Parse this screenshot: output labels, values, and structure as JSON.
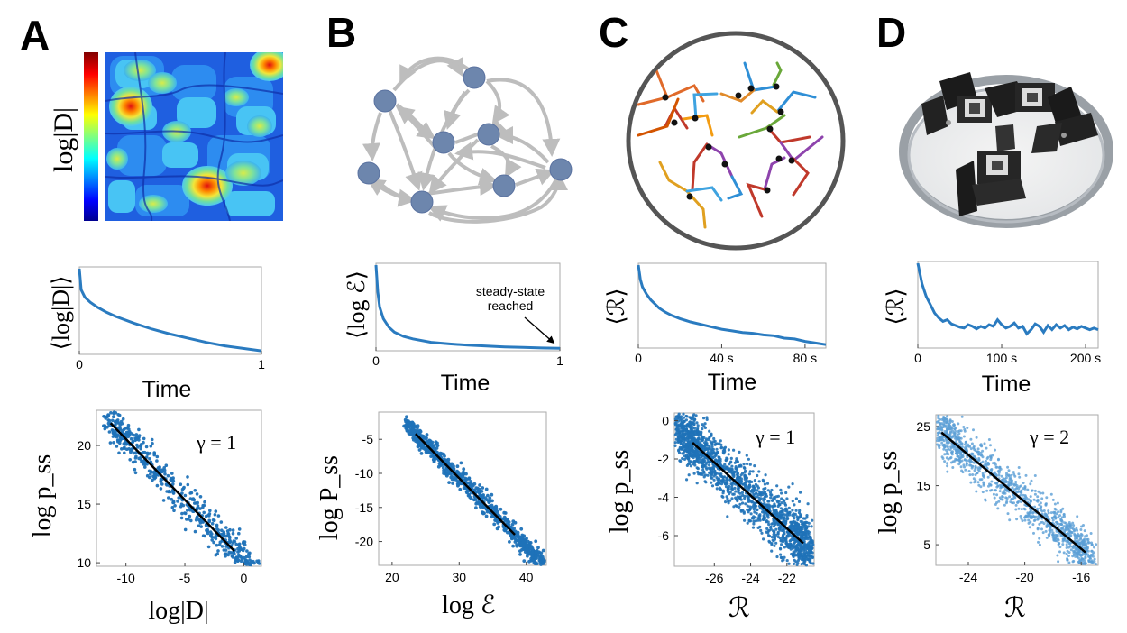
{
  "panels": [
    {
      "letter": "A"
    },
    {
      "letter": "B"
    },
    {
      "letter": "C"
    },
    {
      "letter": "D"
    }
  ],
  "colors": {
    "curve": "#2a7bc0",
    "scatter": "#1f72b8",
    "scatter_light": "#5b9fd6",
    "fit": "#000000",
    "node": "#6d86ad",
    "edge": "#bdbdbd",
    "arena": "#555555",
    "ring": "#9aa0a6"
  },
  "row1": {
    "heatmap_label": "log|D|",
    "annotation": "steady-state reached"
  },
  "chart_data": [
    {
      "id": "A-decay",
      "type": "line",
      "ylabel": "⟨log|D|⟩",
      "xlabel": "Time",
      "xticks": [
        "0",
        "1"
      ],
      "xlim": [
        0,
        1
      ],
      "x": [
        0,
        0.01,
        0.03,
        0.06,
        0.1,
        0.15,
        0.2,
        0.3,
        0.4,
        0.5,
        0.6,
        0.7,
        0.8,
        0.9,
        1.0
      ],
      "y": [
        1.0,
        0.75,
        0.66,
        0.6,
        0.54,
        0.48,
        0.43,
        0.35,
        0.28,
        0.22,
        0.17,
        0.12,
        0.08,
        0.05,
        0.02
      ]
    },
    {
      "id": "B-decay",
      "type": "line",
      "ylabel": "⟨log ℰ⟩",
      "xlabel": "Time",
      "xticks": [
        "0",
        "1"
      ],
      "xlim": [
        0,
        1
      ],
      "annotation": "steady-state reached",
      "x": [
        0,
        0.01,
        0.02,
        0.04,
        0.07,
        0.1,
        0.15,
        0.2,
        0.3,
        0.4,
        0.5,
        0.6,
        0.7,
        0.8,
        0.9,
        1.0
      ],
      "y": [
        1.0,
        0.68,
        0.5,
        0.36,
        0.26,
        0.2,
        0.15,
        0.12,
        0.08,
        0.06,
        0.045,
        0.035,
        0.025,
        0.018,
        0.012,
        0.008
      ]
    },
    {
      "id": "C-decay",
      "type": "line",
      "ylabel": "⟨ℛ⟩",
      "xlabel": "Time",
      "xticks": [
        "0",
        "40 s",
        "80 s"
      ],
      "xtick_values": [
        0,
        40,
        80
      ],
      "xlim": [
        0,
        90
      ],
      "x": [
        0,
        1,
        2,
        4,
        6,
        8,
        10,
        13,
        16,
        20,
        25,
        30,
        35,
        40,
        45,
        50,
        55,
        60,
        65,
        70,
        75,
        80,
        85,
        90
      ],
      "y": [
        1.0,
        0.82,
        0.73,
        0.64,
        0.57,
        0.52,
        0.47,
        0.42,
        0.38,
        0.34,
        0.3,
        0.27,
        0.24,
        0.21,
        0.19,
        0.17,
        0.16,
        0.14,
        0.13,
        0.1,
        0.09,
        0.06,
        0.04,
        0.02
      ]
    },
    {
      "id": "D-decay",
      "type": "line",
      "ylabel": "⟨ℛ⟩",
      "xlabel": "Time",
      "xticks": [
        "0",
        "100 s",
        "200 s"
      ],
      "xtick_values": [
        0,
        100,
        200
      ],
      "xlim": [
        0,
        215
      ],
      "x": [
        0,
        5,
        10,
        15,
        20,
        25,
        30,
        35,
        40,
        45,
        50,
        55,
        60,
        65,
        70,
        75,
        80,
        85,
        90,
        95,
        100,
        105,
        110,
        115,
        120,
        125,
        130,
        135,
        140,
        145,
        150,
        155,
        160,
        165,
        170,
        175,
        180,
        185,
        190,
        195,
        200,
        205,
        210,
        215
      ],
      "y": [
        1.0,
        0.75,
        0.6,
        0.5,
        0.4,
        0.34,
        0.3,
        0.32,
        0.27,
        0.25,
        0.23,
        0.22,
        0.26,
        0.24,
        0.21,
        0.24,
        0.22,
        0.26,
        0.24,
        0.32,
        0.26,
        0.22,
        0.24,
        0.28,
        0.22,
        0.24,
        0.15,
        0.2,
        0.27,
        0.24,
        0.17,
        0.25,
        0.2,
        0.26,
        0.22,
        0.25,
        0.2,
        0.23,
        0.21,
        0.24,
        0.22,
        0.2,
        0.22,
        0.2
      ]
    },
    {
      "id": "A-scatter",
      "type": "scatter",
      "xlabel": "log|D|",
      "ylabel": "log p_ss",
      "gamma": "γ = 1",
      "xlim": [
        -12.5,
        1.5
      ],
      "ylim": [
        9.7,
        23
      ],
      "xticks": [
        "-10",
        "-5",
        "0"
      ],
      "xtick_values": [
        -10,
        -5,
        0
      ],
      "yticks": [
        "10",
        "15",
        "20"
      ],
      "ytick_values": [
        10,
        15,
        20
      ],
      "fit": {
        "x": [
          -11.3,
          -0.8
        ],
        "y": [
          21.9,
          11.0
        ]
      },
      "cloud": {
        "n": 650,
        "xmin": -11.2,
        "xmax": 1.2,
        "slope": -1.04,
        "intercept": 10.2,
        "spread": 1.4
      }
    },
    {
      "id": "B-scatter",
      "type": "scatter",
      "xlabel": "log ℰ",
      "ylabel": "log P_ss",
      "gamma": "",
      "xlim": [
        18,
        43
      ],
      "ylim": [
        -23.5,
        -1
      ],
      "xticks": [
        "20",
        "30",
        "40"
      ],
      "xtick_values": [
        20,
        30,
        40
      ],
      "yticks": [
        "-5",
        "-10",
        "-15",
        "-20"
      ],
      "ytick_values": [
        -5,
        -10,
        -15,
        -20
      ],
      "fit": {
        "x": [
          23.5,
          38.3
        ],
        "y": [
          -4.2,
          -19.0
        ]
      },
      "cloud": {
        "n": 750,
        "xmin": 23.0,
        "xmax": 42.0,
        "slope": -1.0,
        "intercept": 19.3,
        "spread": 1.3
      }
    },
    {
      "id": "C-scatter",
      "type": "scatter",
      "xlabel": "ℛ",
      "ylabel": "log p_ss",
      "gamma": "γ = 1",
      "xlim": [
        -28.2,
        -20.5
      ],
      "ylim": [
        -7.6,
        0.4
      ],
      "xticks": [
        "-26",
        "-24",
        "-22"
      ],
      "xtick_values": [
        -26,
        -24,
        -22
      ],
      "yticks": [
        "0",
        "-2",
        "-4",
        "-6"
      ],
      "ytick_values": [
        0,
        -2,
        -4,
        -6
      ],
      "fit": {
        "x": [
          -27.2,
          -21.1
        ],
        "y": [
          -1.15,
          -6.4
        ]
      },
      "cloud": {
        "n": 1800,
        "xmin": -27.8,
        "xmax": -20.7,
        "slope": -0.86,
        "intercept": -24.55,
        "spread": 1.25
      }
    },
    {
      "id": "D-scatter",
      "type": "scatter",
      "xlabel": "ℛ",
      "ylabel": "log p_ss",
      "gamma": "γ = 2",
      "xlim": [
        -26.3,
        -14.8
      ],
      "ylim": [
        1.5,
        27
      ],
      "xticks": [
        "-24",
        "-20",
        "-16"
      ],
      "xtick_values": [
        -24,
        -20,
        -16
      ],
      "yticks": [
        "25",
        "15",
        "5"
      ],
      "ytick_values": [
        25,
        15,
        5
      ],
      "fit": {
        "x": [
          -25.9,
          -15.7
        ],
        "y": [
          24.0,
          3.7
        ]
      },
      "cloud": {
        "n": 1200,
        "xmin": -26.0,
        "xmax": -15.5,
        "slope": -2.0,
        "intercept": -27.8,
        "spread": 3.4
      }
    }
  ]
}
